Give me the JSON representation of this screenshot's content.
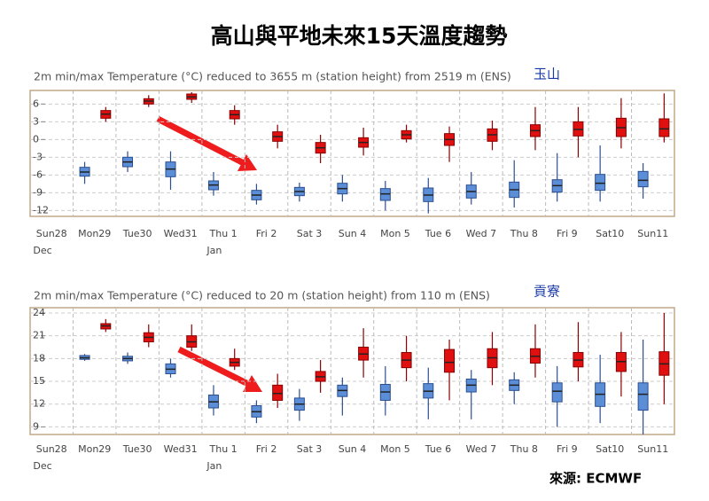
{
  "title": "高山與平地未來15天溫度趨勢",
  "source": "來源: ECMWF",
  "chart_data": [
    {
      "type": "box",
      "subtitle": "2m min/max Temperature (°C) reduced to 3655 m (station height) from 2519 m (ENS)",
      "station": "玉山",
      "categories": [
        "Sun28",
        "Mon29",
        "Tue30",
        "Wed31",
        "Thu 1",
        "Fri 2",
        "Sat 3",
        "Sun 4",
        "Mon 5",
        "Tue 6",
        "Wed 7",
        "Thu 8",
        "Fri 9",
        "Sat10",
        "Sun11"
      ],
      "categories2": [
        "Dec",
        null,
        null,
        null,
        "Jan",
        null,
        null,
        null,
        null,
        null,
        null,
        null,
        null,
        null,
        null
      ],
      "highlight_categories": [
        0,
        7,
        14
      ],
      "highlight_color": "#e01818",
      "grid": true,
      "ylim": [
        -13,
        8.3
      ],
      "yticks": [
        6,
        3,
        0,
        -3,
        -6,
        -9,
        -12
      ],
      "series": [
        {
          "color": "#5b8ed6",
          "values": [
            null,
            [
              -7.5,
              -6.2,
              -5.5,
              -4.7,
              -3.8
            ],
            [
              -5.5,
              -4.6,
              -3.8,
              -3.0,
              -2.0
            ],
            [
              -8.5,
              -6.3,
              -5,
              -3.8,
              -2
            ],
            [
              -9.5,
              -8.5,
              -7.7,
              -7,
              -5.5
            ],
            [
              -11,
              -10.2,
              -9.4,
              -8.6,
              -7.5
            ],
            [
              -10.5,
              -9.5,
              -8.8,
              -8.1,
              -7.3
            ],
            [
              -10.5,
              -9.2,
              -8.3,
              -7.4,
              -6
            ],
            [
              -12,
              -10.3,
              -9.2,
              -8.3,
              -7
            ],
            [
              -12.5,
              -10.5,
              -9.4,
              -8.2,
              -6.5
            ],
            [
              -11,
              -9.9,
              -8.8,
              -7.7,
              -5.5
            ],
            [
              -11.5,
              -9.8,
              -8.5,
              -7.2,
              -3.5
            ],
            [
              -10.5,
              -8.9,
              -7.8,
              -6.8,
              -2.3
            ],
            [
              -10.5,
              -8.6,
              -7.4,
              -5.9,
              -1
            ],
            [
              -10,
              -8,
              -6.9,
              -5.4,
              -4
            ]
          ]
        },
        {
          "color": "#e01010",
          "values": [
            null,
            [
              3,
              3.6,
              4.3,
              4.9,
              5.5
            ],
            [
              5.5,
              6,
              6.5,
              6.9,
              7.5
            ],
            [
              6.2,
              6.8,
              7.2,
              7.7,
              8
            ],
            [
              2.5,
              3.5,
              4.2,
              4.9,
              5.8
            ],
            [
              -1.5,
              -0.3,
              0.5,
              1.3,
              2.5
            ],
            [
              -4,
              -2.3,
              -1.4,
              -0.5,
              0.8
            ],
            [
              -2.7,
              -1.3,
              -0.5,
              0.3,
              2
            ],
            [
              -0.5,
              0.1,
              0.8,
              1.5,
              2.5
            ],
            [
              -3.8,
              -1,
              0,
              1,
              2.2
            ],
            [
              -1.8,
              -0.3,
              0.8,
              1.8,
              3.2
            ],
            [
              -1.8,
              0.5,
              1.5,
              2.5,
              5.5
            ],
            [
              -3,
              0.6,
              1.7,
              3,
              5.5
            ],
            [
              -1.5,
              0.5,
              2,
              3.6,
              7
            ],
            [
              -0.5,
              0.5,
              1.8,
              3.5,
              7.8
            ]
          ]
        }
      ]
    },
    {
      "type": "box",
      "subtitle": "2m min/max Temperature (°C) reduced to 20 m (station height) from 110 m (ENS)",
      "station": "貢寮",
      "categories": [
        "Sun28",
        "Mon29",
        "Tue30",
        "Wed31",
        "Thu 1",
        "Fri 2",
        "Sat 3",
        "Sun 4",
        "Mon 5",
        "Tue 6",
        "Wed 7",
        "Thu 8",
        "Fri 9",
        "Sat10",
        "Sun11"
      ],
      "categories2": [
        "Dec",
        null,
        null,
        null,
        "Jan",
        null,
        null,
        null,
        null,
        null,
        null,
        null,
        null,
        null,
        null
      ],
      "highlight_categories": [
        0,
        7,
        14
      ],
      "highlight_color": "#e01818",
      "grid": true,
      "ylim": [
        8,
        24.7
      ],
      "yticks": [
        24,
        21,
        18,
        15,
        12,
        9
      ],
      "series": [
        {
          "color": "#5b8ed6",
          "values": [
            null,
            [
              17.7,
              17.9,
              18.1,
              18.4,
              18.6
            ],
            [
              17.3,
              17.7,
              18,
              18.3,
              18.8
            ],
            [
              15.5,
              16,
              16.6,
              17.3,
              18
            ],
            [
              10.5,
              11.5,
              12.3,
              13.2,
              14.5
            ],
            [
              9.5,
              10.3,
              11,
              11.8,
              12.5
            ],
            [
              9.8,
              11.2,
              12,
              12.8,
              14
            ],
            [
              10.5,
              13,
              13.8,
              14.5,
              15.5
            ],
            [
              10.5,
              12.5,
              13.6,
              14.6,
              17
            ],
            [
              10,
              12.8,
              13.7,
              14.7,
              16.8
            ],
            [
              10,
              13.6,
              14.5,
              15.3,
              16.5
            ],
            [
              12,
              13.8,
              14.5,
              15.2,
              16.2
            ],
            [
              9,
              12.3,
              13.7,
              14.8,
              17
            ],
            [
              9.5,
              11.7,
              13.3,
              14.8,
              18.5
            ],
            [
              8,
              11.2,
              13.3,
              14.8,
              20.5
            ]
          ]
        },
        {
          "color": "#e01010",
          "values": [
            null,
            [
              21.5,
              21.9,
              22.3,
              22.6,
              23.2
            ],
            [
              19.5,
              20.2,
              20.8,
              21.4,
              22.5
            ],
            [
              19,
              19.5,
              20.2,
              21,
              22.5
            ],
            [
              16.5,
              17,
              17.5,
              18,
              19.3
            ],
            [
              11.5,
              12.5,
              13.4,
              14.5,
              16
            ],
            [
              13.5,
              15,
              15.6,
              16.3,
              17.8
            ],
            [
              15.5,
              17.8,
              18.6,
              19.5,
              22
            ],
            [
              15,
              16.8,
              17.8,
              18.8,
              21
            ],
            [
              12.5,
              16.2,
              17.5,
              19.2,
              20.5
            ],
            [
              14.5,
              16.8,
              18.1,
              19.3,
              21.5
            ],
            [
              15.5,
              17.4,
              18.3,
              19.3,
              22.5
            ],
            [
              15,
              16.9,
              17.8,
              18.8,
              22.8
            ],
            [
              13,
              16.3,
              17.6,
              18.8,
              21.5
            ],
            [
              12,
              15.8,
              17.3,
              18.9,
              24
            ]
          ]
        }
      ]
    }
  ]
}
